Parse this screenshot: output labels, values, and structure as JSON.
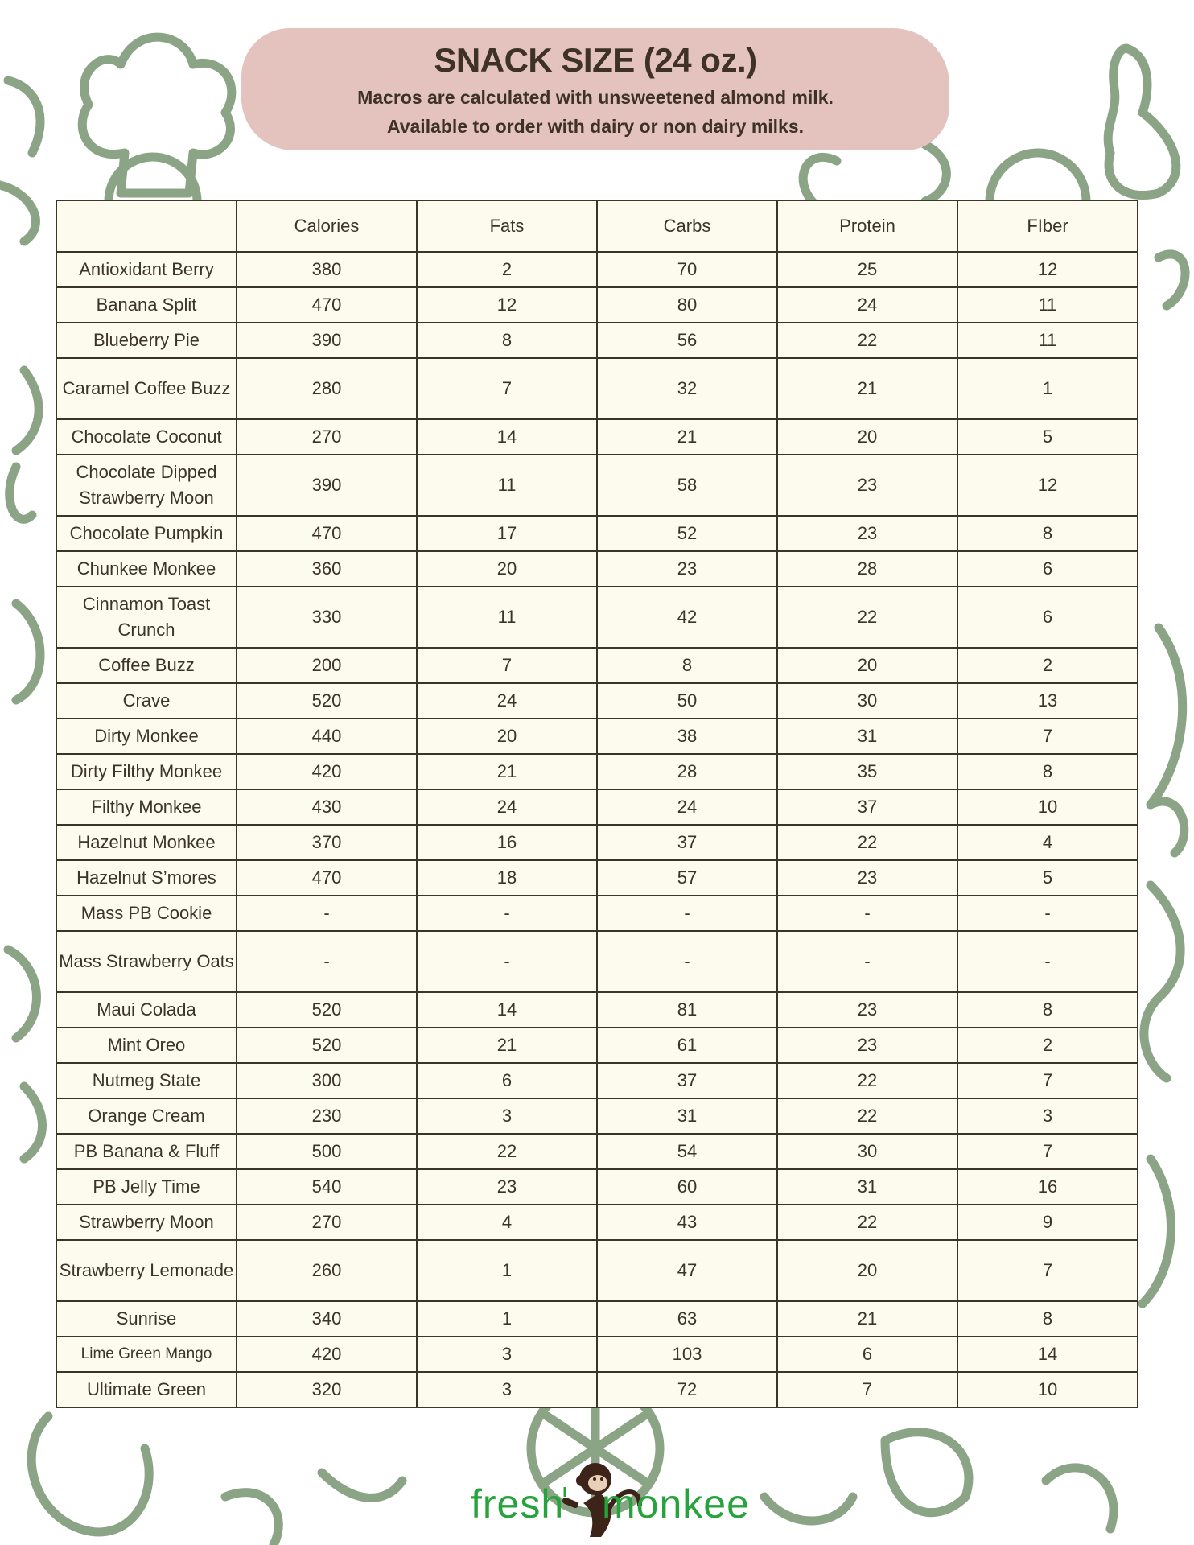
{
  "header": {
    "title": "SNACK SIZE (24 oz.)",
    "subtitle_line1": "Macros are calculated with unsweetened almond milk.",
    "subtitle_line2": "Available to order with dairy or non dairy milks."
  },
  "colors": {
    "banner": "#e4c3bf",
    "background_doodle": "#8ba486",
    "logo_green": "#27a33c",
    "logo_brown": "#3d2418",
    "table_bg": "#fdfaee"
  },
  "table": {
    "columns": [
      "",
      "Calories",
      "Fats",
      "Carbs",
      "Protein",
      "FIber"
    ],
    "rows": [
      {
        "name": "Antioxidant Berry",
        "values": [
          "380",
          "2",
          "70",
          "25",
          "12"
        ]
      },
      {
        "name": "Banana Split",
        "values": [
          "470",
          "12",
          "80",
          "24",
          "11"
        ]
      },
      {
        "name": "Blueberry Pie",
        "values": [
          "390",
          "8",
          "56",
          "22",
          "11"
        ]
      },
      {
        "name": "Caramel Coffee Buzz",
        "values": [
          "280",
          "7",
          "32",
          "21",
          "1"
        ],
        "wrap": true
      },
      {
        "name": "Chocolate Coconut",
        "values": [
          "270",
          "14",
          "21",
          "20",
          "5"
        ]
      },
      {
        "name": "Chocolate Dipped Strawberry Moon",
        "values": [
          "390",
          "11",
          "58",
          "23",
          "12"
        ],
        "wrap": true
      },
      {
        "name": "Chocolate Pumpkin",
        "values": [
          "470",
          "17",
          "52",
          "23",
          "8"
        ]
      },
      {
        "name": "Chunkee Monkee",
        "values": [
          "360",
          "20",
          "23",
          "28",
          "6"
        ]
      },
      {
        "name": "Cinnamon Toast Crunch",
        "values": [
          "330",
          "11",
          "42",
          "22",
          "6"
        ],
        "wrap": true
      },
      {
        "name": "Coffee Buzz",
        "values": [
          "200",
          "7",
          "8",
          "20",
          "2"
        ]
      },
      {
        "name": "Crave",
        "values": [
          "520",
          "24",
          "50",
          "30",
          "13"
        ]
      },
      {
        "name": "Dirty Monkee",
        "values": [
          "440",
          "20",
          "38",
          "31",
          "7"
        ]
      },
      {
        "name": "Dirty Filthy Monkee",
        "values": [
          "420",
          "21",
          "28",
          "35",
          "8"
        ]
      },
      {
        "name": "Filthy Monkee",
        "values": [
          "430",
          "24",
          "24",
          "37",
          "10"
        ]
      },
      {
        "name": "Hazelnut Monkee",
        "values": [
          "370",
          "16",
          "37",
          "22",
          "4"
        ]
      },
      {
        "name": "Hazelnut S’mores",
        "values": [
          "470",
          "18",
          "57",
          "23",
          "5"
        ]
      },
      {
        "name": "Mass PB Cookie",
        "values": [
          "-",
          "-",
          "-",
          "-",
          "-"
        ]
      },
      {
        "name": "Mass Strawberry Oats",
        "values": [
          "-",
          "-",
          "-",
          "-",
          "-"
        ],
        "wrap": true
      },
      {
        "name": "Maui Colada",
        "values": [
          "520",
          "14",
          "81",
          "23",
          "8"
        ]
      },
      {
        "name": "Mint Oreo",
        "values": [
          "520",
          "21",
          "61",
          "23",
          "2"
        ]
      },
      {
        "name": "Nutmeg State",
        "values": [
          "300",
          "6",
          "37",
          "22",
          "7"
        ]
      },
      {
        "name": "Orange Cream",
        "values": [
          "230",
          "3",
          "31",
          "22",
          "3"
        ]
      },
      {
        "name": "PB Banana & Fluff",
        "values": [
          "500",
          "22",
          "54",
          "30",
          "7"
        ]
      },
      {
        "name": "PB Jelly Time",
        "values": [
          "540",
          "23",
          "60",
          "31",
          "16"
        ]
      },
      {
        "name": "Strawberry Moon",
        "values": [
          "270",
          "4",
          "43",
          "22",
          "9"
        ]
      },
      {
        "name": "Strawberry Lemonade",
        "values": [
          "260",
          "1",
          "47",
          "20",
          "7"
        ],
        "wrap": true
      },
      {
        "name": "Sunrise",
        "values": [
          "340",
          "1",
          "63",
          "21",
          "8"
        ]
      },
      {
        "name": "Lime Green Mango",
        "values": [
          "420",
          "3",
          "103",
          "6",
          "14"
        ],
        "small": true
      },
      {
        "name": "Ultimate Green",
        "values": [
          "320",
          "3",
          "72",
          "7",
          "10"
        ]
      }
    ]
  },
  "logo": {
    "text_left": "fresh",
    "text_right": "monkee",
    "icon": "monkey-icon"
  }
}
